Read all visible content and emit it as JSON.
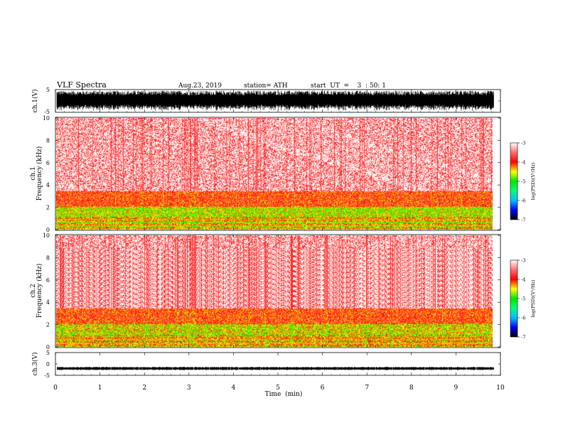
{
  "header": {
    "title": "VLF  Spectra",
    "date": "Aug.23, 2019",
    "station": "station= ATH",
    "start": "start  UT  =    3  : 50: 1"
  },
  "colors": {
    "background_spec": "#ffffff",
    "waveform": "#000000",
    "colormap": [
      "#000000",
      "#0000ff",
      "#00ffff",
      "#00ff00",
      "#ffff00",
      "#ff0000",
      "#ff8080",
      "#ffffff"
    ]
  },
  "chart_data": [
    {
      "type": "line",
      "name": "ch1-waveform",
      "ylabel": "ch.1(V)",
      "yticks": [
        "5",
        "-5"
      ],
      "ylim": [
        -5,
        5
      ],
      "xlim": [
        0,
        10
      ],
      "description_values": {
        "envelope_max": 4.5,
        "envelope_min": -4.5,
        "data_end_min": 9.85
      }
    },
    {
      "type": "heatmap",
      "name": "ch1-spectrogram",
      "ylabel_top": "ch.1",
      "ylabel": "Frequency  (kHz)",
      "yticks": [
        "10",
        "8",
        "6",
        "4",
        "2",
        "0"
      ],
      "ylim": [
        0,
        10
      ],
      "xlim": [
        0,
        10
      ],
      "colorbar": {
        "label": "log(PSD)(V²/Hz)",
        "ticks": [
          "-3",
          "-4",
          "-5",
          "-6",
          "-7"
        ],
        "range": [
          -7,
          -3
        ]
      },
      "bands": [
        {
          "from_khz": 3.4,
          "to_khz": 10,
          "level": -3.3
        },
        {
          "from_khz": 2.0,
          "to_khz": 3.4,
          "level": -4.0
        },
        {
          "from_khz": 1.2,
          "to_khz": 2.0,
          "level": -4.6
        },
        {
          "from_khz": 0.0,
          "to_khz": 1.2,
          "level": -4.3
        }
      ]
    },
    {
      "type": "heatmap",
      "name": "ch2-spectrogram",
      "ylabel_top": "ch.2",
      "ylabel": "Frequency  (kHz)",
      "yticks": [
        "10",
        "8",
        "6",
        "4",
        "2",
        "0"
      ],
      "ylim": [
        0,
        10
      ],
      "xlim": [
        0,
        10
      ],
      "colorbar": {
        "label": "log(PSD)(V²/Hz)",
        "ticks": [
          "-3",
          "-4",
          "-5",
          "-6",
          "-7"
        ],
        "range": [
          -7,
          -3
        ]
      },
      "bands": [
        {
          "from_khz": 3.4,
          "to_khz": 10,
          "level": -3.3
        },
        {
          "from_khz": 2.0,
          "to_khz": 3.4,
          "level": -4.0
        },
        {
          "from_khz": 1.0,
          "to_khz": 2.0,
          "level": -4.5
        },
        {
          "from_khz": 0.0,
          "to_khz": 1.0,
          "level": -4.2
        }
      ]
    },
    {
      "type": "line",
      "name": "ch3-waveform",
      "ylabel": "ch.3(V)",
      "yticks": [
        "5",
        "0",
        "-5"
      ],
      "ylim": [
        -5,
        5
      ],
      "xlim": [
        0,
        10
      ],
      "xlabel": "Time  (min)",
      "xticks": [
        "0",
        "1",
        "2",
        "3",
        "4",
        "5",
        "6",
        "7",
        "8",
        "9",
        "10"
      ],
      "description_values": {
        "mean_level": -2.0,
        "data_end_min": 9.85
      }
    }
  ]
}
